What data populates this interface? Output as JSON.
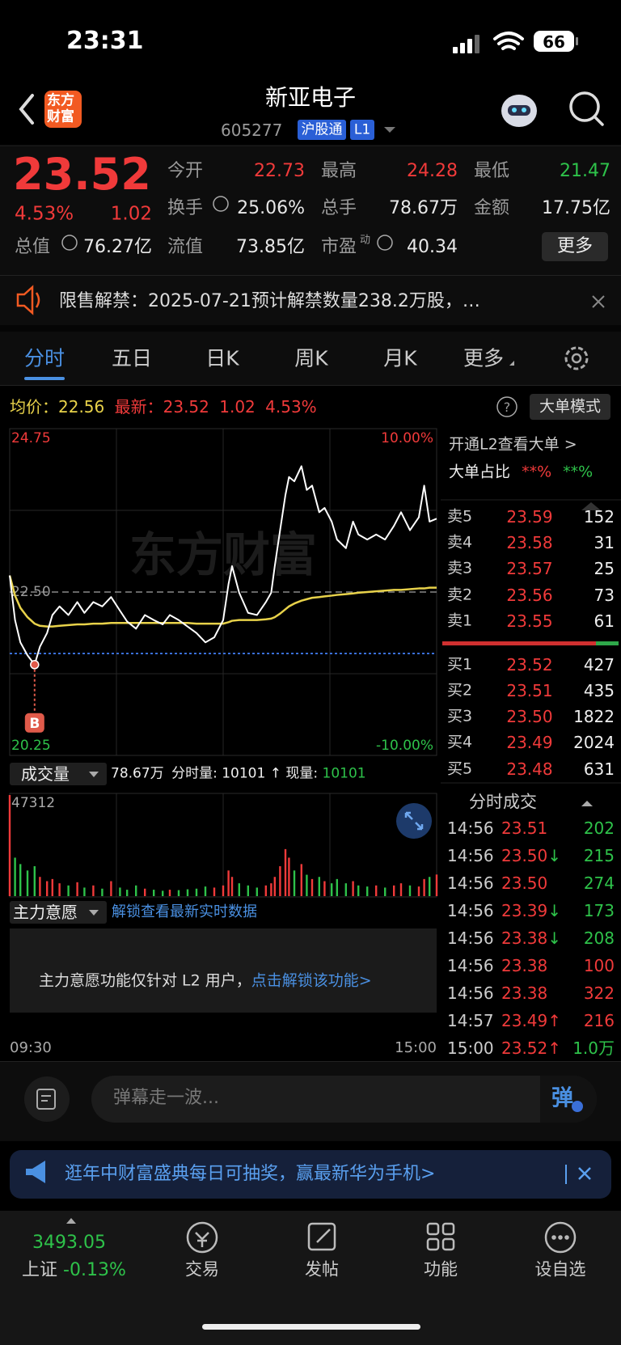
{
  "status_bar": {
    "time": "23:31",
    "battery": "66"
  },
  "header": {
    "logo": [
      "东方",
      "财富"
    ],
    "title": "新亚电子",
    "code": "605277",
    "badges": [
      "沪股通",
      "L1"
    ]
  },
  "quote": {
    "price": "23.52",
    "change_pct": "4.53%",
    "change": "1.02",
    "open_label": "今开",
    "open": "22.73",
    "high_label": "最高",
    "high": "24.28",
    "low_label": "最低",
    "low": "21.47",
    "turnover_label": "换手",
    "turnover": "25.06%",
    "volume_label": "总手",
    "volume": "78.67万",
    "amount_label": "金额",
    "amount": "17.75亿",
    "mktcap_label": "总值",
    "mktcap": "76.27亿",
    "float_label": "流值",
    "float_cap": "73.85亿",
    "pe_label": "市盈",
    "pe_sup": "动",
    "pe": "40.34",
    "more": "更多"
  },
  "notice": {
    "text": "限售解禁：2025-07-21预计解禁数量238.2万股，…"
  },
  "tabs": [
    "分时",
    "五日",
    "日K",
    "周K",
    "月K",
    "更多"
  ],
  "info_bar": {
    "avg_label": "均价：",
    "avg": "22.56",
    "last_label": "最新：",
    "last": "23.52",
    "change": "1.02",
    "change_pct": "4.53%",
    "help": "?",
    "mode": "大单模式"
  },
  "chart_data": [
    {
      "type": "line",
      "watermark": "东方财富",
      "marker": "B",
      "x": [
        0,
        3,
        6,
        10,
        14,
        17,
        21,
        24,
        28,
        33,
        38,
        42,
        47,
        52,
        57,
        62,
        66,
        71,
        76,
        81,
        86,
        90,
        95,
        100,
        105,
        110,
        115,
        120,
        123,
        125,
        129,
        134,
        139,
        144,
        147,
        149,
        152,
        155,
        157,
        160,
        164,
        167,
        170,
        174,
        177,
        181,
        184,
        189,
        193,
        196,
        201,
        206,
        211,
        216,
        220,
        225,
        230,
        233,
        236,
        240
      ],
      "series": [
        {
          "color": "#ffffff",
          "values": [
            22.73,
            22.11,
            21.8,
            21.62,
            21.49,
            21.74,
            21.93,
            22.18,
            22.3,
            22.18,
            22.36,
            22.21,
            22.36,
            22.3,
            22.43,
            22.24,
            22.09,
            21.99,
            22.18,
            22.11,
            22.05,
            22.18,
            22.11,
            22.02,
            21.93,
            21.8,
            21.87,
            22.11,
            22.61,
            22.86,
            22.49,
            22.21,
            22.18,
            22.36,
            22.49,
            22.86,
            23.36,
            23.85,
            24.1,
            24.04,
            24.25,
            23.92,
            23.98,
            23.61,
            23.67,
            23.48,
            23.23,
            23.11,
            23.48,
            23.3,
            23.23,
            23.3,
            23.23,
            23.42,
            23.61,
            23.36,
            23.54,
            23.98,
            23.48,
            23.52
          ]
        },
        {
          "color": "#e8d24a",
          "values": [
            22.73,
            22.45,
            22.28,
            22.15,
            22.06,
            22.03,
            22.02,
            22.02,
            22.03,
            22.04,
            22.05,
            22.05,
            22.06,
            22.06,
            22.07,
            22.07,
            22.07,
            22.07,
            22.07,
            22.07,
            22.07,
            22.07,
            22.07,
            22.07,
            22.06,
            22.06,
            22.06,
            22.06,
            22.08,
            22.1,
            22.11,
            22.11,
            22.11,
            22.12,
            22.13,
            22.15,
            22.2,
            22.26,
            22.3,
            22.34,
            22.38,
            22.4,
            22.42,
            22.43,
            22.44,
            22.45,
            22.46,
            22.47,
            22.48,
            22.49,
            22.5,
            22.51,
            22.52,
            22.53,
            22.53,
            22.54,
            22.55,
            22.55,
            22.56,
            22.56
          ]
        }
      ],
      "xlim": [
        0,
        240
      ],
      "xticks": [
        {
          "value": 0,
          "label": "09:30"
        },
        {
          "value": 240,
          "label": "15:00"
        }
      ],
      "ylim": [
        20.25,
        24.75
      ],
      "yticks": [
        24.75,
        {
          "value": 22.5,
          "label": "22.50"
        },
        20.25
      ],
      "y2lim": [
        -10,
        10
      ],
      "y2ticks": [
        {
          "value": 10,
          "label": "10.00%"
        },
        {
          "value": -10,
          "label": "-10.00%"
        }
      ],
      "up_color": "#f03a3a",
      "down_color": "#2ec24a",
      "flat_color": "#9a9a9a"
    },
    {
      "type": "bar",
      "x": [
        0,
        3,
        6,
        10,
        14,
        17,
        21,
        24,
        28,
        33,
        38,
        42,
        47,
        52,
        57,
        62,
        66,
        71,
        76,
        81,
        86,
        90,
        95,
        100,
        105,
        110,
        115,
        120,
        123,
        125,
        129,
        134,
        139,
        144,
        147,
        149,
        152,
        155,
        157,
        160,
        164,
        167,
        170,
        174,
        177,
        181,
        184,
        189,
        193,
        196,
        201,
        206,
        211,
        216,
        220,
        225,
        230,
        233,
        236,
        240
      ],
      "values": [
        47312,
        18000,
        15000,
        12000,
        14000,
        9000,
        7000,
        8000,
        6000,
        5000,
        6500,
        4000,
        5000,
        3500,
        7000,
        4000,
        3000,
        5000,
        3500,
        3000,
        2500,
        3000,
        2800,
        3200,
        3500,
        4500,
        4000,
        5000,
        12000,
        9000,
        6000,
        5000,
        4000,
        5000,
        6000,
        9000,
        14000,
        22000,
        18000,
        12000,
        15000,
        10000,
        8000,
        9000,
        7000,
        6000,
        8000,
        6000,
        7000,
        5000,
        4500,
        5000,
        4000,
        5000,
        6000,
        5000,
        4500,
        8000,
        9000,
        10101
      ],
      "xlim": [
        0,
        240
      ],
      "ylim": [
        0,
        47312
      ],
      "yticks": [
        47312
      ],
      "up_color": "#f03a3a",
      "down_color": "#2ec24a"
    }
  ],
  "order_book": {
    "promo": "开通L2查看大单 >",
    "ratio_label": "大单占比",
    "ratio_sell": "**%",
    "ratio_buy": "**%",
    "asks": [
      {
        "label": "卖5",
        "price": "23.59",
        "volume": "152"
      },
      {
        "label": "卖4",
        "price": "23.58",
        "volume": "31"
      },
      {
        "label": "卖3",
        "price": "23.57",
        "volume": "25"
      },
      {
        "label": "卖2",
        "price": "23.56",
        "volume": "73"
      },
      {
        "label": "卖1",
        "price": "23.55",
        "volume": "61"
      }
    ],
    "bids": [
      {
        "label": "买1",
        "price": "23.52",
        "volume": "427"
      },
      {
        "label": "买2",
        "price": "23.51",
        "volume": "435"
      },
      {
        "label": "买3",
        "price": "23.50",
        "volume": "1822"
      },
      {
        "label": "买4",
        "price": "23.49",
        "volume": "2024"
      },
      {
        "label": "买5",
        "price": "23.48",
        "volume": "631"
      }
    ]
  },
  "volume_bar": {
    "menu": "成交量",
    "total": "78.67万",
    "minute_label": "分时量:",
    "minute": "10101",
    "arrow": "↑",
    "current_label": "现量:",
    "current": "10101"
  },
  "main_force": {
    "menu": "主力意愿",
    "link": "解锁查看最新实时数据",
    "message": "主力意愿功能仅针对 L2 用户，",
    "cta": "点击解锁该功能>"
  },
  "trades": {
    "title": "分时成交",
    "rows": [
      {
        "time": "14:56",
        "price": "23.51",
        "volume": "202",
        "color": "#2ec24a"
      },
      {
        "time": "14:56",
        "price": "23.50",
        "arrow": "↓",
        "volume": "215",
        "color": "#2ec24a"
      },
      {
        "time": "14:56",
        "price": "23.50",
        "volume": "274",
        "color": "#2ec24a"
      },
      {
        "time": "14:56",
        "price": "23.39",
        "arrow": "↓",
        "volume": "173",
        "color": "#2ec24a"
      },
      {
        "time": "14:56",
        "price": "23.38",
        "arrow": "↓",
        "volume": "208",
        "color": "#2ec24a"
      },
      {
        "time": "14:56",
        "price": "23.38",
        "volume": "100",
        "color": "#f03a3a"
      },
      {
        "time": "14:56",
        "price": "23.38",
        "volume": "322",
        "color": "#f03a3a"
      },
      {
        "time": "14:57",
        "price": "23.49",
        "arrow": "↑",
        "volume": "216",
        "color": "#f03a3a"
      },
      {
        "time": "15:00",
        "price": "23.52",
        "arrow": "↑",
        "volume": "1.0万",
        "color": "#2ec24a"
      }
    ]
  },
  "comment_bar": {
    "placeholder": "弹幕走一波...",
    "button": "弹"
  },
  "banner": {
    "text": "逛年中财富盛典每日可抽奖，赢最新华为手机>"
  },
  "bottom_nav": {
    "index_value": "3493.05",
    "index_name": "上证",
    "index_change": "-0.13%",
    "items": [
      "交易",
      "发帖",
      "功能",
      "设自选"
    ]
  }
}
